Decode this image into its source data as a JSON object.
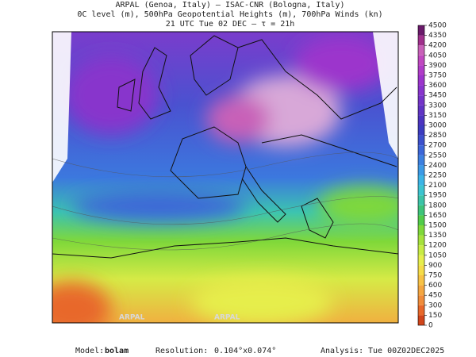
{
  "header": {
    "lines": [
      "ARPAL (Genoa, Italy)  —  ISAC-CNR (Bologna, Italy)",
      "0C level (m), 500hPa Geopotential Heights (m), 700hPa Winds (kn)",
      "21 UTC Tue 02 DEC  —  τ = 21h"
    ]
  },
  "map": {
    "watermark": "ARPAL"
  },
  "colorbar": {
    "ticks": [
      0,
      150,
      300,
      450,
      600,
      750,
      900,
      1050,
      1200,
      1350,
      1500,
      1650,
      1800,
      1950,
      2100,
      2250,
      2400,
      2550,
      2700,
      2850,
      3000,
      3150,
      3300,
      3450,
      3600,
      3750,
      3900,
      4050,
      4200,
      4350,
      4500
    ],
    "colors": [
      "#d0451b",
      "#e8682a",
      "#f08c3a",
      "#f4a640",
      "#f7c245",
      "#f5dc48",
      "#e6ee4c",
      "#c8ec44",
      "#a6e23c",
      "#7fd83a",
      "#52cc4a",
      "#3ec47a",
      "#3cc4a8",
      "#3cc4d0",
      "#3cb4e6",
      "#3c9ae6",
      "#3c80e0",
      "#3c66d8",
      "#3c50cc",
      "#3c3cc0",
      "#4c34c0",
      "#6034c4",
      "#7434c8",
      "#8834cc",
      "#9c34cc",
      "#b03cc8",
      "#c048c0",
      "#c860b8",
      "#a0308c",
      "#6a1a6a"
    ]
  },
  "footer": {
    "model_label": "Model:",
    "model": "bolam",
    "resolution_label": "Resolution:",
    "resolution": "0.104°x0.074°",
    "analysis_label": "Analysis:",
    "analysis": "Tue 00Z02DEC2025"
  }
}
